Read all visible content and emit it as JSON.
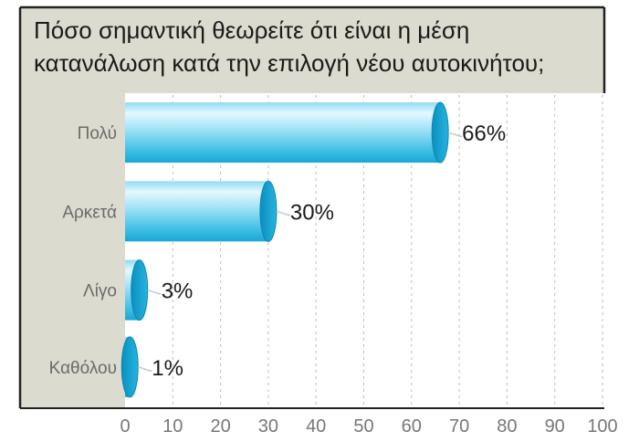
{
  "title_lines": [
    "Πόσο σημαντική θεωρείτε ότι είναι η μέση",
    "κατανάλωση κατά την επιλογή νέου αυτοκινήτου;"
  ],
  "chart_data": {
    "type": "bar",
    "orientation": "horizontal",
    "title": "Πόσο σημαντική θεωρείτε ότι είναι η μέση κατανάλωση κατά την επιλογή νέου αυτοκινήτου;",
    "categories": [
      "Πολύ",
      "Αρκετά",
      "Λίγο",
      "Καθόλου"
    ],
    "values": [
      66,
      30,
      3,
      1
    ],
    "value_labels": [
      "66%",
      "30%",
      "3%",
      "1%"
    ],
    "xlim": [
      0,
      100
    ],
    "x_ticks": [
      0,
      10,
      20,
      30,
      40,
      50,
      60,
      70,
      80,
      90,
      100
    ],
    "x_tick_labels": [
      "0",
      "10",
      "20",
      "30",
      "40",
      "50",
      "60",
      "70",
      "80",
      "90",
      "100"
    ],
    "grid": "vertical dashed",
    "xlabel": "",
    "ylabel": ""
  },
  "colors": {
    "bar_light": "#cdf0fb",
    "bar_mid": "#6fd0ee",
    "bar_dark": "#1ea9d6",
    "bar_end": "#0e9cc9",
    "panel": "#dcdbcf",
    "frame": "#222222"
  }
}
